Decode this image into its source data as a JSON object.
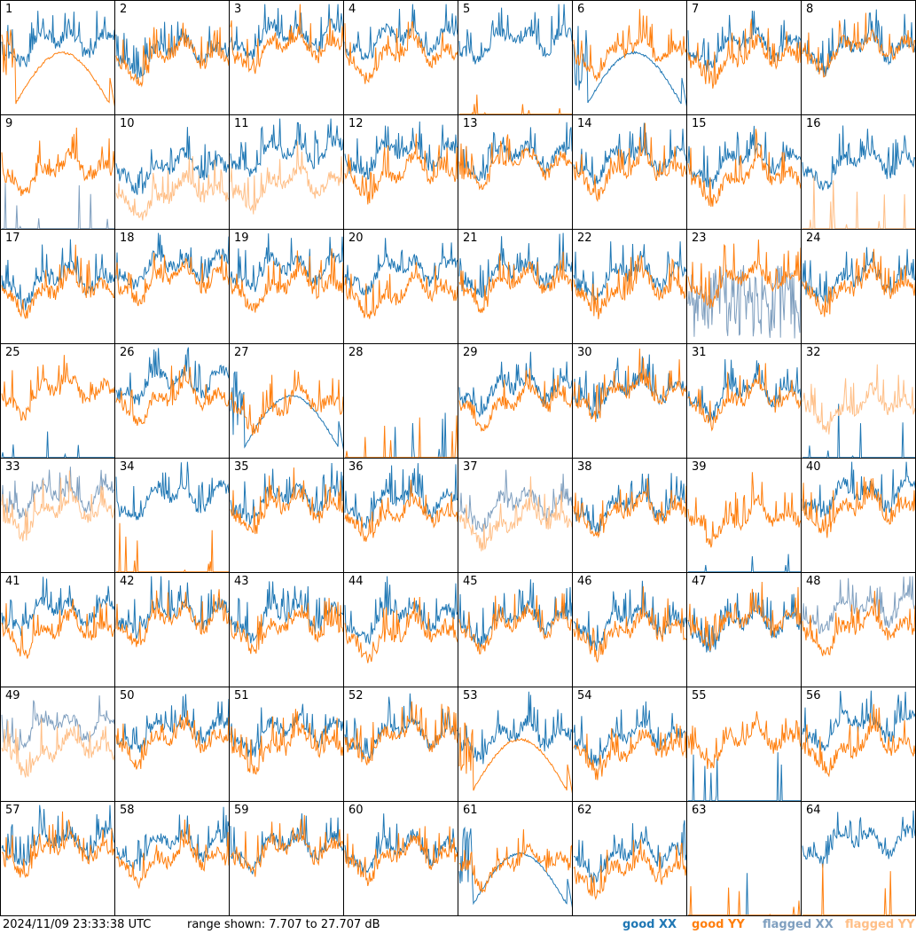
{
  "footer": {
    "timestamp": "2024/11/09 23:33:38 UTC",
    "range": "range shown: 7.707 to 27.707 dB"
  },
  "legend": [
    {
      "label": "good XX",
      "color": "#1f77b4"
    },
    {
      "label": "good YY",
      "color": "#ff7f0e"
    },
    {
      "label": "flagged XX",
      "color": "#7f9fbf"
    },
    {
      "label": "flagged YY",
      "color": "#ffbf87"
    }
  ],
  "chart_data": {
    "type": "line",
    "ylim": [
      7.707,
      27.707
    ],
    "unit": "dB",
    "grid": "8x8 small multiples",
    "panels": [
      {
        "id": "1",
        "xx": "good",
        "yy": "good",
        "shape": "yy_dip_x"
      },
      {
        "id": "2",
        "xx": "good",
        "yy": "good",
        "shape": "normal"
      },
      {
        "id": "3",
        "xx": "good",
        "yy": "good",
        "shape": "normal"
      },
      {
        "id": "4",
        "xx": "good",
        "yy": "good",
        "shape": "normal"
      },
      {
        "id": "5",
        "xx": "good",
        "yy": "good",
        "shape": "yy_flat"
      },
      {
        "id": "6",
        "xx": "good",
        "yy": "good",
        "shape": "xx_dip"
      },
      {
        "id": "7",
        "xx": "good",
        "yy": "good",
        "shape": "normal"
      },
      {
        "id": "8",
        "xx": "good",
        "yy": "good",
        "shape": "normal"
      },
      {
        "id": "9",
        "xx": "flagged",
        "yy": "good",
        "shape": "xx_flat"
      },
      {
        "id": "10",
        "xx": "good",
        "yy": "flagged",
        "shape": "yy_low"
      },
      {
        "id": "11",
        "xx": "good",
        "yy": "flagged",
        "shape": "yy_low"
      },
      {
        "id": "12",
        "xx": "good",
        "yy": "good",
        "shape": "normal"
      },
      {
        "id": "13",
        "xx": "good",
        "yy": "good",
        "shape": "normal"
      },
      {
        "id": "14",
        "xx": "good",
        "yy": "good",
        "shape": "normal"
      },
      {
        "id": "15",
        "xx": "good",
        "yy": "good",
        "shape": "normal"
      },
      {
        "id": "16",
        "xx": "good",
        "yy": "flagged",
        "shape": "yy_flat"
      },
      {
        "id": "17",
        "xx": "good",
        "yy": "good",
        "shape": "normal"
      },
      {
        "id": "18",
        "xx": "good",
        "yy": "good",
        "shape": "normal"
      },
      {
        "id": "19",
        "xx": "good",
        "yy": "good",
        "shape": "normal"
      },
      {
        "id": "20",
        "xx": "good",
        "yy": "good",
        "shape": "normal"
      },
      {
        "id": "21",
        "xx": "good",
        "yy": "good",
        "shape": "normal"
      },
      {
        "id": "22",
        "xx": "good",
        "yy": "good",
        "shape": "normal"
      },
      {
        "id": "23",
        "xx": "flagged",
        "yy": "good",
        "shape": "xx_noisy"
      },
      {
        "id": "24",
        "xx": "good",
        "yy": "good",
        "shape": "normal"
      },
      {
        "id": "25",
        "xx": "good",
        "yy": "good",
        "shape": "xx_flat"
      },
      {
        "id": "26",
        "xx": "good",
        "yy": "good",
        "shape": "normal"
      },
      {
        "id": "27",
        "xx": "good",
        "yy": "good",
        "shape": "xx_dip"
      },
      {
        "id": "28",
        "xx": "good",
        "yy": "good",
        "shape": "both_flat"
      },
      {
        "id": "29",
        "xx": "good",
        "yy": "good",
        "shape": "normal"
      },
      {
        "id": "30",
        "xx": "good",
        "yy": "good",
        "shape": "normal"
      },
      {
        "id": "31",
        "xx": "good",
        "yy": "good",
        "shape": "normal"
      },
      {
        "id": "32",
        "xx": "good",
        "yy": "flagged",
        "shape": "xx_flat"
      },
      {
        "id": "33",
        "xx": "flagged",
        "yy": "flagged",
        "shape": "normal"
      },
      {
        "id": "34",
        "xx": "good",
        "yy": "good",
        "shape": "yy_flat"
      },
      {
        "id": "35",
        "xx": "good",
        "yy": "good",
        "shape": "normal"
      },
      {
        "id": "36",
        "xx": "good",
        "yy": "good",
        "shape": "normal"
      },
      {
        "id": "37",
        "xx": "flagged",
        "yy": "flagged",
        "shape": "normal"
      },
      {
        "id": "38",
        "xx": "good",
        "yy": "good",
        "shape": "normal"
      },
      {
        "id": "39",
        "xx": "good",
        "yy": "good",
        "shape": "xx_flat"
      },
      {
        "id": "40",
        "xx": "good",
        "yy": "good",
        "shape": "normal"
      },
      {
        "id": "41",
        "xx": "good",
        "yy": "good",
        "shape": "normal"
      },
      {
        "id": "42",
        "xx": "good",
        "yy": "good",
        "shape": "normal"
      },
      {
        "id": "43",
        "xx": "good",
        "yy": "good",
        "shape": "normal"
      },
      {
        "id": "44",
        "xx": "good",
        "yy": "good",
        "shape": "normal"
      },
      {
        "id": "45",
        "xx": "good",
        "yy": "good",
        "shape": "normal"
      },
      {
        "id": "46",
        "xx": "good",
        "yy": "good",
        "shape": "normal"
      },
      {
        "id": "47",
        "xx": "good",
        "yy": "good",
        "shape": "normal"
      },
      {
        "id": "48",
        "xx": "flagged",
        "yy": "good",
        "shape": "normal"
      },
      {
        "id": "49",
        "xx": "flagged",
        "yy": "flagged",
        "shape": "normal"
      },
      {
        "id": "50",
        "xx": "good",
        "yy": "good",
        "shape": "normal"
      },
      {
        "id": "51",
        "xx": "good",
        "yy": "good",
        "shape": "normal"
      },
      {
        "id": "52",
        "xx": "good",
        "yy": "good",
        "shape": "normal"
      },
      {
        "id": "53",
        "xx": "good",
        "yy": "good",
        "shape": "yy_dip"
      },
      {
        "id": "54",
        "xx": "good",
        "yy": "good",
        "shape": "normal"
      },
      {
        "id": "55",
        "xx": "good",
        "yy": "good",
        "shape": "xx_flat"
      },
      {
        "id": "56",
        "xx": "good",
        "yy": "good",
        "shape": "normal"
      },
      {
        "id": "57",
        "xx": "good",
        "yy": "good",
        "shape": "normal"
      },
      {
        "id": "58",
        "xx": "good",
        "yy": "good",
        "shape": "normal"
      },
      {
        "id": "59",
        "xx": "good",
        "yy": "good",
        "shape": "normal"
      },
      {
        "id": "60",
        "xx": "good",
        "yy": "good",
        "shape": "normal"
      },
      {
        "id": "61",
        "xx": "good",
        "yy": "good",
        "shape": "xx_dip"
      },
      {
        "id": "62",
        "xx": "good",
        "yy": "good",
        "shape": "yy_low"
      },
      {
        "id": "63",
        "xx": "good",
        "yy": "good",
        "shape": "both_flat"
      },
      {
        "id": "64",
        "xx": "good",
        "yy": "good",
        "shape": "yy_flat"
      }
    ]
  }
}
